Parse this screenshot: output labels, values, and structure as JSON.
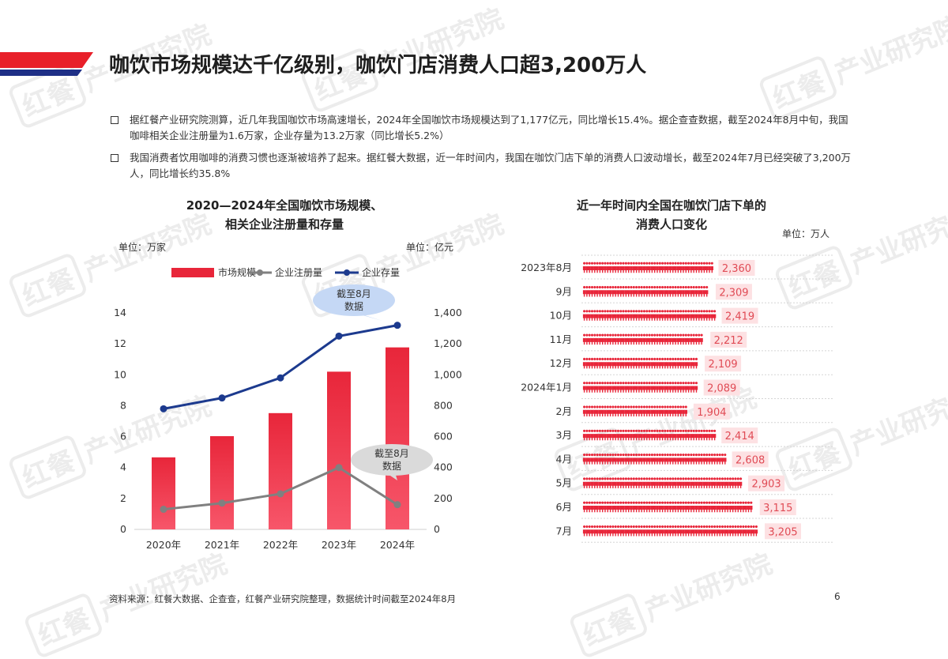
{
  "slide": {
    "title": "咖饮市场规模达千亿级别，咖饮门店消费人口超3,200万人",
    "bullets": [
      "据红餐产业研究院测算，近几年我国咖饮市场高速增长，2024年全国咖饮市场规模达到了1,177亿元，同比增长15.4%。据企查查数据，截至2024年8月中旬，我国咖啡相关企业注册量为1.6万家，企业存量为13.2万家（同比增长5.2%）",
      "我国消费者饮用咖啡的消费习惯也逐渐被培养了起来。据红餐大数据，近一年时间内，我国在咖饮门店下单的消费人口波动增长，截至2024年7月已经突破了3,200万人，同比增长约35.8%"
    ],
    "source": "资料来源：红餐大数据、企查查，红餐产业研究院整理，数据统计时间截至2024年8月",
    "page": "6",
    "watermark": "产业研究院",
    "watermark_logo": "红餐"
  },
  "colors": {
    "header_red": "#e8202a",
    "header_navy": "#1e2f86",
    "bar_red": "#e8263a",
    "line_gray": "#808080",
    "line_navy": "#1c3a8e",
    "bubble_blue": "#c5d8f5",
    "bubble_gray": "#dadada",
    "label_bg": "#fde1e3",
    "label_text": "#e04b55",
    "icon_red": "#e8263a"
  },
  "chart_data": [
    {
      "type": "bar",
      "title": "2020—2024年全国咖饮市场规模、\n相关企业注册量和存量",
      "unit_left": "单位：万家",
      "unit_right": "单位：亿元",
      "categories": [
        "2020年",
        "2021年",
        "2022年",
        "2023年",
        "2024年"
      ],
      "left_axis": {
        "ticks": [
          "0",
          "2",
          "4",
          "6",
          "8",
          "10",
          "12",
          "14"
        ],
        "ylim": [
          0,
          14
        ]
      },
      "right_axis": {
        "ticks": [
          "0",
          "200",
          "400",
          "600",
          "800",
          "1,000",
          "1,200",
          "1,400"
        ],
        "ylim": [
          0,
          1400
        ]
      },
      "series": [
        {
          "name": "市场规模",
          "kind": "bar",
          "axis": "right",
          "values": [
            466,
            603,
            752,
            1020,
            1177
          ]
        },
        {
          "name": "企业注册量",
          "kind": "line",
          "axis": "left",
          "values": [
            1.3,
            1.7,
            2.3,
            4.0,
            1.6
          ]
        },
        {
          "name": "企业存量",
          "kind": "line",
          "axis": "left",
          "values": [
            7.8,
            8.5,
            9.8,
            12.5,
            13.2
          ]
        }
      ],
      "annotations": [
        {
          "text": "截至8月\n数据",
          "series": "企业存量",
          "index": 4
        },
        {
          "text": "截至8月\n数据",
          "series": "企业注册量",
          "index": 4
        }
      ]
    },
    {
      "type": "bar",
      "orientation": "horizontal",
      "title": "近一年时间内全国在咖饮门店下单的\n消费人口变化",
      "unit": "单位：万人",
      "categories": [
        "2023年8月",
        "9月",
        "10月",
        "11月",
        "12月",
        "2024年1月",
        "2月",
        "3月",
        "4月",
        "5月",
        "6月",
        "7月"
      ],
      "values": [
        2360,
        2309,
        2419,
        2212,
        2109,
        2089,
        1904,
        2414,
        2608,
        2903,
        3115,
        3205
      ],
      "value_labels": [
        "2,360",
        "2,309",
        "2,419",
        "2,212",
        "2,109",
        "2,089",
        "1,904",
        "2,414",
        "2,608",
        "2,903",
        "3,115",
        "3,205"
      ]
    }
  ]
}
